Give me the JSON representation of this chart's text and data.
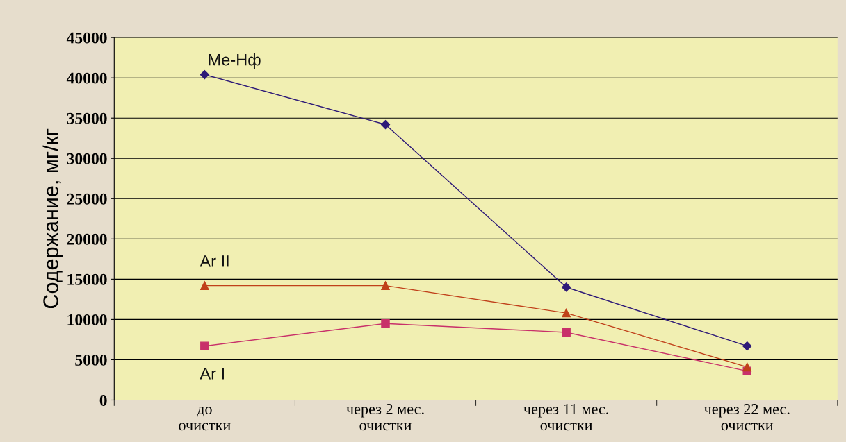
{
  "chart_data": {
    "type": "line",
    "ylabel": "Содержание, мг/кг",
    "categories": [
      "до\nочистки",
      "через 2 мес.\nочистки",
      "через 11 мес.\nочистки",
      "через 22 мес.\nочистки"
    ],
    "series": [
      {
        "name": "Me-Нф",
        "color": "#2e1a78",
        "marker": "diamond",
        "values": [
          40400,
          34200,
          14000,
          6700
        ]
      },
      {
        "name": "Ar II",
        "color": "#c0401a",
        "marker": "triangle",
        "values": [
          14200,
          14200,
          10800,
          4100
        ]
      },
      {
        "name": "Ar I",
        "color": "#c8306a",
        "marker": "square",
        "values": [
          6700,
          9500,
          8400,
          3600
        ]
      }
    ],
    "ylim": [
      0,
      45000
    ],
    "yticks": [
      0,
      5000,
      10000,
      15000,
      20000,
      25000,
      30000,
      35000,
      40000,
      45000
    ],
    "grid": "y",
    "legend": false,
    "line_style": "solid"
  }
}
